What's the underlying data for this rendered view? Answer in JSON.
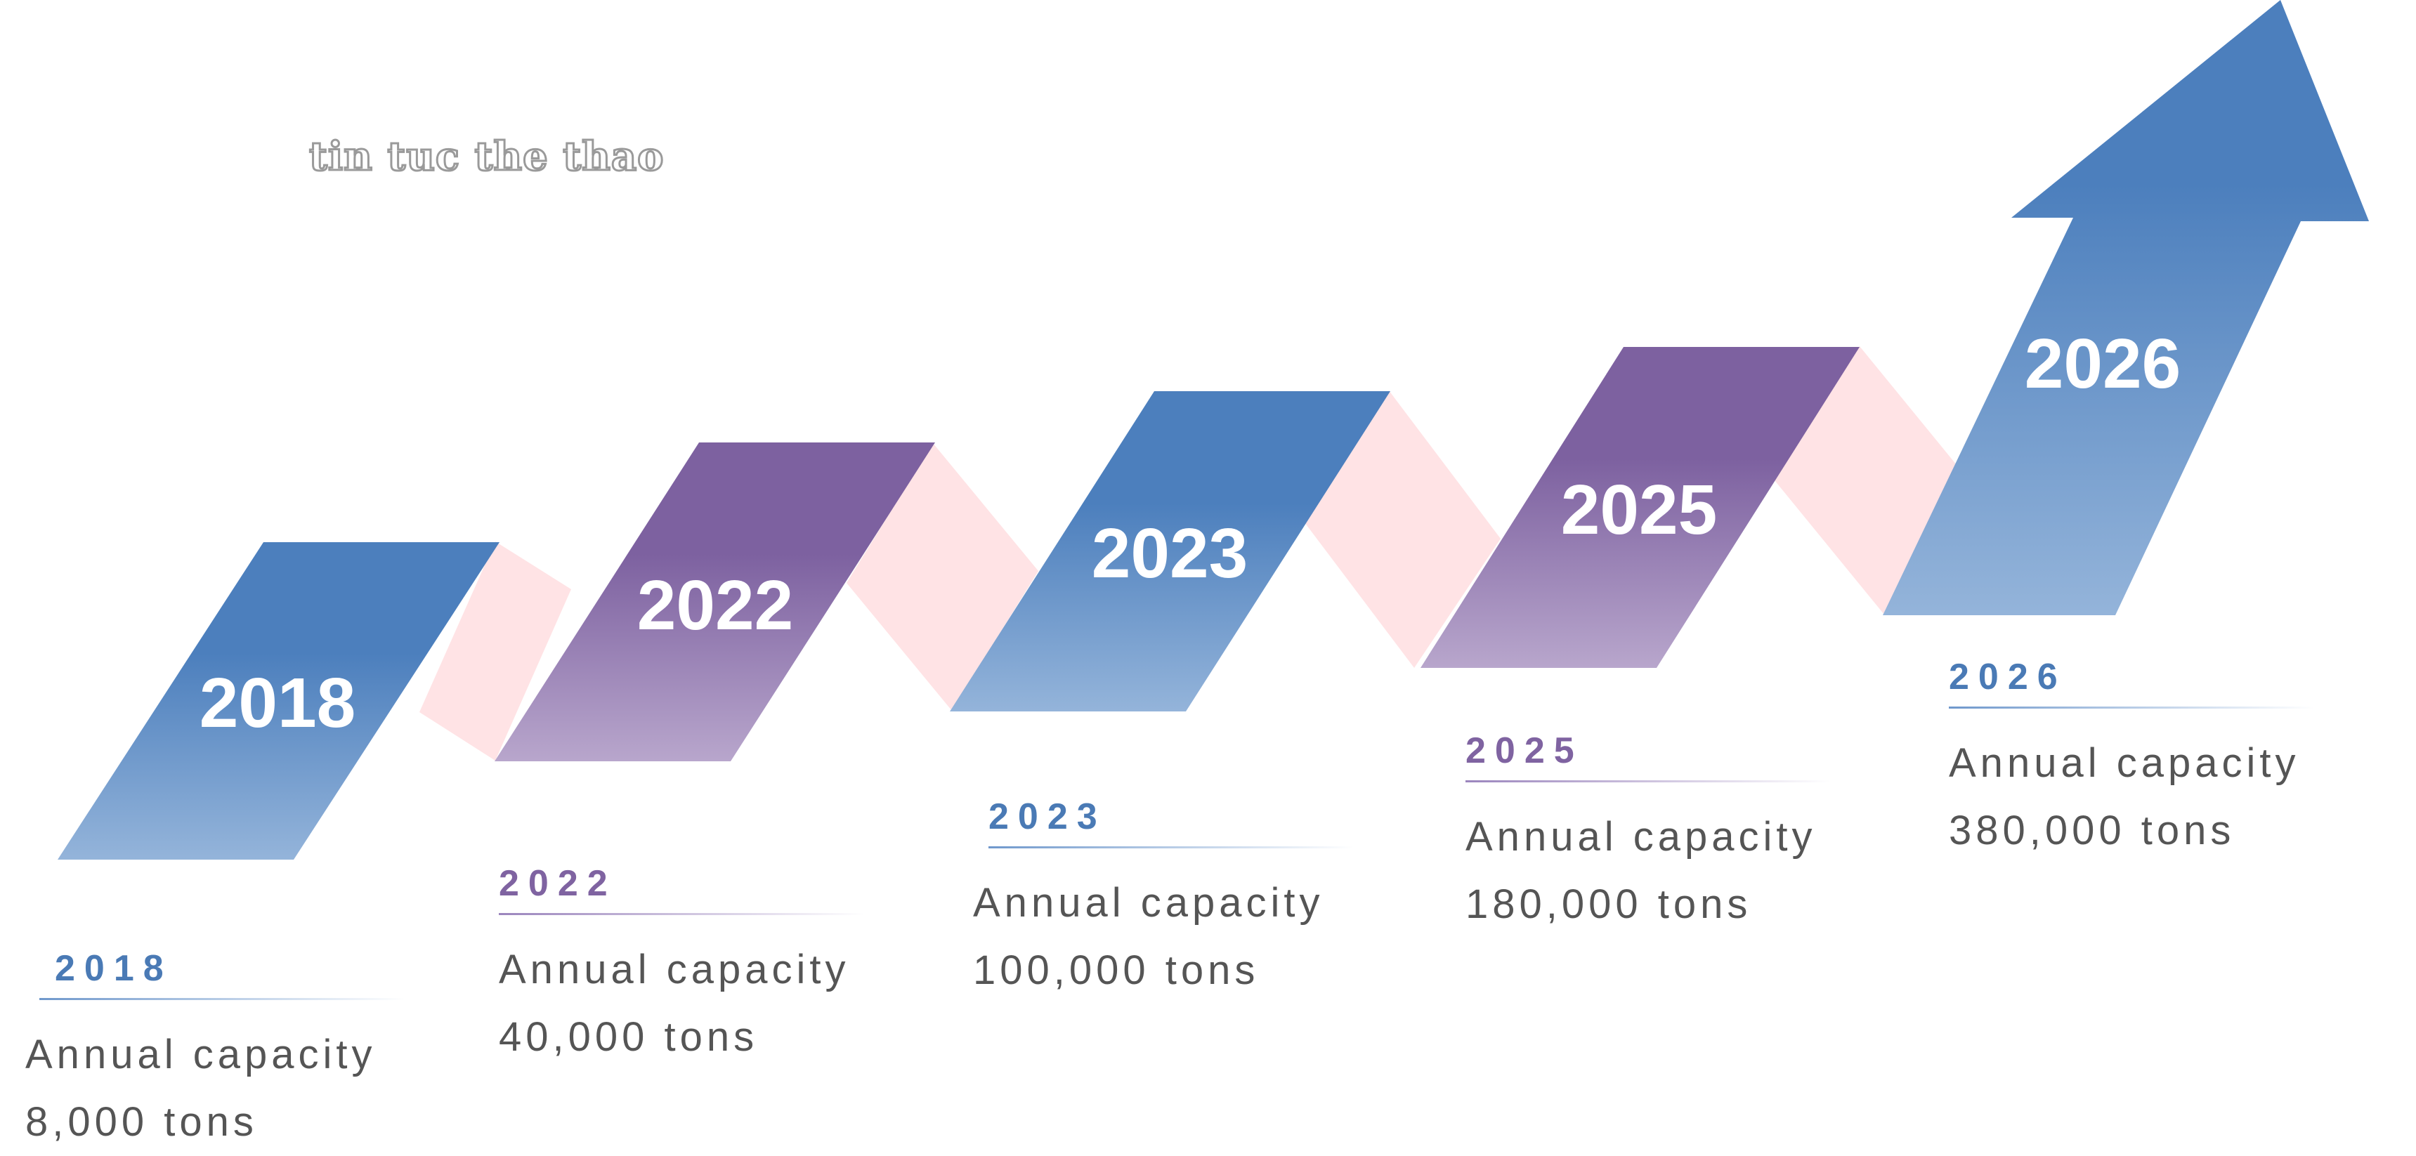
{
  "watermark": "tin tuc the thao",
  "colors": {
    "blue_top": "#4c7fbd",
    "blue_bottom": "#94b4da",
    "purple_top": "#7d61a0",
    "purple_bottom": "#b8a6cc",
    "connector": "#ffe3e5",
    "caption_text": "#555555"
  },
  "steps": [
    {
      "band_label": "2018",
      "caption_year": "2018",
      "caption_line1": "Annual capacity",
      "caption_line2": "8,000 tons",
      "color": "blue"
    },
    {
      "band_label": "2022",
      "caption_year": "2022",
      "caption_line1": "Annual capacity",
      "caption_line2": "40,000 tons",
      "color": "purple"
    },
    {
      "band_label": "2023",
      "caption_year": "2023",
      "caption_line1": "Annual capacity",
      "caption_line2": "100,000 tons",
      "color": "blue"
    },
    {
      "band_label": "2025",
      "caption_year": "2025",
      "caption_line1": "Annual capacity",
      "caption_line2": "180,000 tons",
      "color": "purple"
    },
    {
      "band_label": "2026",
      "caption_year": "2026",
      "caption_line1": "Annual capacity",
      "caption_line2": "380,000 tons",
      "color": "blue"
    }
  ],
  "final_marker": "up-arrow-icon"
}
